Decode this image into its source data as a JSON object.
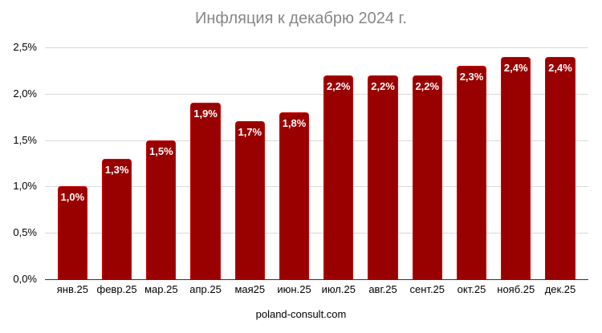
{
  "footer": "poland-consult.com",
  "colors": {
    "bar_fill": "#990000",
    "bar_border": "#cc0000",
    "value_label": "#ffffff",
    "title": "#878787",
    "gridline": "#d9d9d9",
    "axis_line": "#333333",
    "tick_label": "#000000"
  },
  "chart_data": {
    "type": "bar",
    "title": "Инфляция к декабрю 2024 г.",
    "xlabel": "",
    "ylabel": "",
    "categories": [
      "янв.25",
      "февр.25",
      "мар.25",
      "апр.25",
      "мая25",
      "июн.25",
      "июл.25",
      "авг.25",
      "сент.25",
      "окт.25",
      "нояб.25",
      "дек.25"
    ],
    "values": [
      1.0,
      1.3,
      1.5,
      1.9,
      1.7,
      1.8,
      2.2,
      2.2,
      2.2,
      2.3,
      2.4,
      2.4
    ],
    "value_labels": [
      "1,0%",
      "1,3%",
      "1,5%",
      "1,9%",
      "1,7%",
      "1,8%",
      "2,2%",
      "2,2%",
      "2,2%",
      "2,3%",
      "2,4%",
      "2,4%"
    ],
    "y_tick_values": [
      0,
      0.5,
      1.0,
      1.5,
      2.0,
      2.5
    ],
    "y_ticks": [
      "0,0%",
      "0,5%",
      "1,0%",
      "1,5%",
      "2,0%",
      "2,5%"
    ],
    "ylim": [
      0,
      2.5
    ],
    "grid": "horizontal",
    "legend": "none"
  }
}
